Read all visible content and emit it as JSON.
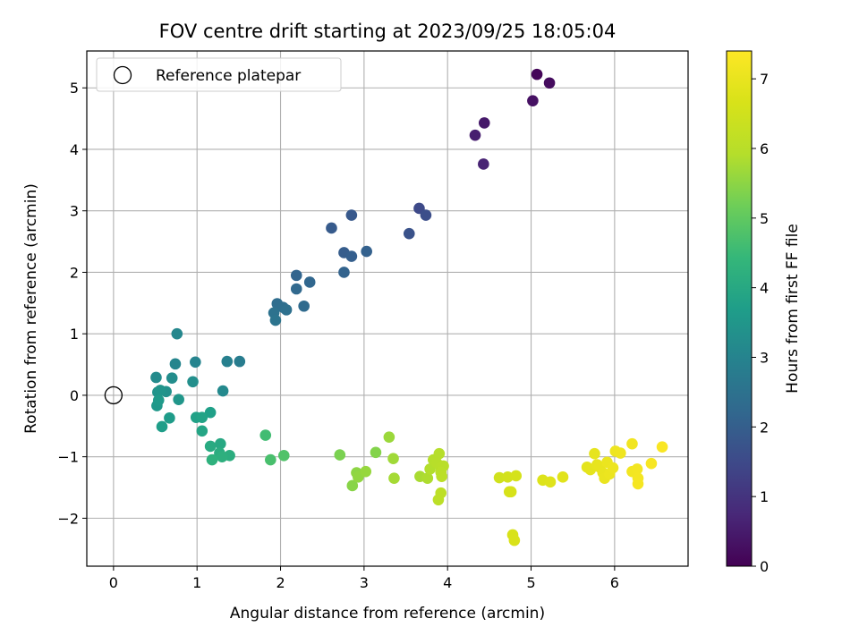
{
  "chart_data": {
    "type": "scatter",
    "title": "FOV centre drift starting at 2023/09/25 18:05:04",
    "xlabel": "Angular distance from reference (arcmin)",
    "ylabel": "Rotation from reference (arcmin)",
    "xlim": [
      -0.32,
      6.88
    ],
    "ylim": [
      -2.78,
      5.6
    ],
    "xticks": [
      0,
      1,
      2,
      3,
      4,
      5,
      6
    ],
    "yticks": [
      -2,
      -1,
      0,
      1,
      2,
      3,
      4,
      5
    ],
    "grid": true,
    "legend": {
      "position": "top-left",
      "entries": [
        "Reference platepar"
      ]
    },
    "reference_point": {
      "label": "Reference platepar",
      "x": 0,
      "y": 0
    },
    "colorbar": {
      "label": "Hours from first FF file",
      "colormap": "viridis",
      "range": [
        0,
        7.4
      ],
      "ticks": [
        0,
        1,
        2,
        3,
        4,
        5,
        6,
        7
      ]
    },
    "series": [
      {
        "points": [
          [
            5.07,
            5.22,
            0.1
          ],
          [
            5.22,
            5.08,
            0.2
          ],
          [
            5.02,
            4.79,
            0.3
          ],
          [
            4.44,
            4.43,
            0.45
          ],
          [
            4.33,
            4.23,
            0.55
          ],
          [
            4.43,
            3.76,
            0.65
          ],
          [
            3.66,
            3.04,
            1.5
          ],
          [
            3.74,
            2.93,
            1.6
          ],
          [
            3.54,
            2.63,
            1.7
          ],
          [
            2.85,
            2.93,
            1.85
          ],
          [
            2.61,
            2.72,
            1.9
          ],
          [
            2.76,
            2.32,
            1.95
          ],
          [
            2.85,
            2.26,
            2.0
          ],
          [
            3.03,
            2.34,
            2.05
          ],
          [
            2.76,
            2.0,
            2.1
          ],
          [
            2.19,
            1.95,
            2.15
          ],
          [
            2.35,
            1.84,
            2.2
          ],
          [
            2.19,
            1.73,
            2.25
          ],
          [
            2.28,
            1.45,
            2.3
          ],
          [
            1.96,
            1.49,
            2.35
          ],
          [
            2.03,
            1.43,
            2.4
          ],
          [
            2.07,
            1.39,
            2.45
          ],
          [
            1.92,
            1.34,
            2.5
          ],
          [
            1.94,
            1.22,
            2.55
          ],
          [
            1.51,
            0.55,
            2.8
          ],
          [
            1.36,
            0.55,
            2.9
          ],
          [
            0.98,
            0.54,
            3.0
          ],
          [
            0.74,
            0.51,
            3.05
          ],
          [
            0.76,
            1.0,
            3.1
          ],
          [
            1.31,
            0.07,
            3.15
          ],
          [
            0.51,
            0.29,
            3.2
          ],
          [
            0.7,
            0.28,
            3.25
          ],
          [
            0.95,
            0.22,
            3.3
          ],
          [
            0.63,
            0.06,
            3.35
          ],
          [
            0.53,
            0.05,
            3.4
          ],
          [
            0.56,
            0.08,
            3.45
          ],
          [
            0.78,
            -0.07,
            3.5
          ],
          [
            0.52,
            -0.17,
            3.55
          ],
          [
            0.54,
            -0.08,
            3.6
          ],
          [
            0.67,
            -0.37,
            3.65
          ],
          [
            0.58,
            -0.51,
            3.7
          ],
          [
            1.16,
            -0.28,
            3.75
          ],
          [
            0.99,
            -0.36,
            3.8
          ],
          [
            1.06,
            -0.36,
            3.85
          ],
          [
            1.06,
            -0.58,
            3.9
          ],
          [
            1.28,
            -0.79,
            4.0
          ],
          [
            1.16,
            -0.83,
            4.05
          ],
          [
            1.27,
            -0.94,
            4.1
          ],
          [
            1.39,
            -0.98,
            4.15
          ],
          [
            1.3,
            -1.0,
            4.2
          ],
          [
            1.18,
            -1.05,
            4.25
          ],
          [
            1.82,
            -0.65,
            4.6
          ],
          [
            1.88,
            -1.05,
            4.7
          ],
          [
            2.04,
            -0.98,
            4.8
          ],
          [
            2.71,
            -0.97,
            5.3
          ],
          [
            3.14,
            -0.93,
            5.4
          ],
          [
            2.86,
            -1.47,
            5.45
          ],
          [
            2.91,
            -1.26,
            5.5
          ],
          [
            2.93,
            -1.33,
            5.55
          ],
          [
            3.02,
            -1.24,
            5.6
          ],
          [
            3.3,
            -0.68,
            5.65
          ],
          [
            3.35,
            -1.03,
            5.7
          ],
          [
            3.36,
            -1.35,
            5.75
          ],
          [
            3.67,
            -1.32,
            5.8
          ],
          [
            3.76,
            -1.35,
            5.85
          ],
          [
            3.79,
            -1.2,
            5.9
          ],
          [
            3.83,
            -1.05,
            5.92
          ],
          [
            3.9,
            -0.95,
            5.94
          ],
          [
            3.87,
            -1.1,
            5.96
          ],
          [
            3.92,
            -1.17,
            5.98
          ],
          [
            3.95,
            -1.15,
            6.0
          ],
          [
            3.92,
            -1.25,
            6.02
          ],
          [
            3.93,
            -1.32,
            6.04
          ],
          [
            3.89,
            -1.7,
            6.06
          ],
          [
            3.92,
            -1.59,
            6.08
          ],
          [
            4.62,
            -1.34,
            6.5
          ],
          [
            4.72,
            -1.33,
            6.55
          ],
          [
            4.82,
            -1.31,
            6.6
          ],
          [
            4.74,
            -1.57,
            6.62
          ],
          [
            4.76,
            -1.57,
            6.64
          ],
          [
            4.78,
            -2.27,
            6.66
          ],
          [
            4.8,
            -2.36,
            6.68
          ],
          [
            5.14,
            -1.38,
            6.75
          ],
          [
            5.23,
            -1.41,
            6.8
          ],
          [
            5.38,
            -1.33,
            6.85
          ],
          [
            5.67,
            -1.17,
            6.9
          ],
          [
            5.71,
            -1.21,
            6.92
          ],
          [
            5.76,
            -0.95,
            6.94
          ],
          [
            5.79,
            -1.13,
            6.96
          ],
          [
            5.82,
            -1.17,
            6.98
          ],
          [
            5.86,
            -1.26,
            7.0
          ],
          [
            5.88,
            -1.35,
            7.02
          ],
          [
            5.91,
            -1.09,
            7.04
          ],
          [
            5.94,
            -1.28,
            7.06
          ],
          [
            5.98,
            -1.18,
            7.08
          ],
          [
            6.01,
            -0.91,
            7.1
          ],
          [
            6.07,
            -0.94,
            7.12
          ],
          [
            6.21,
            -0.79,
            7.15
          ],
          [
            6.21,
            -1.24,
            7.18
          ],
          [
            6.27,
            -1.2,
            7.2
          ],
          [
            6.28,
            -1.35,
            7.22
          ],
          [
            6.28,
            -1.44,
            7.24
          ],
          [
            6.44,
            -1.11,
            7.28
          ],
          [
            6.57,
            -0.84,
            7.32
          ]
        ]
      }
    ]
  }
}
